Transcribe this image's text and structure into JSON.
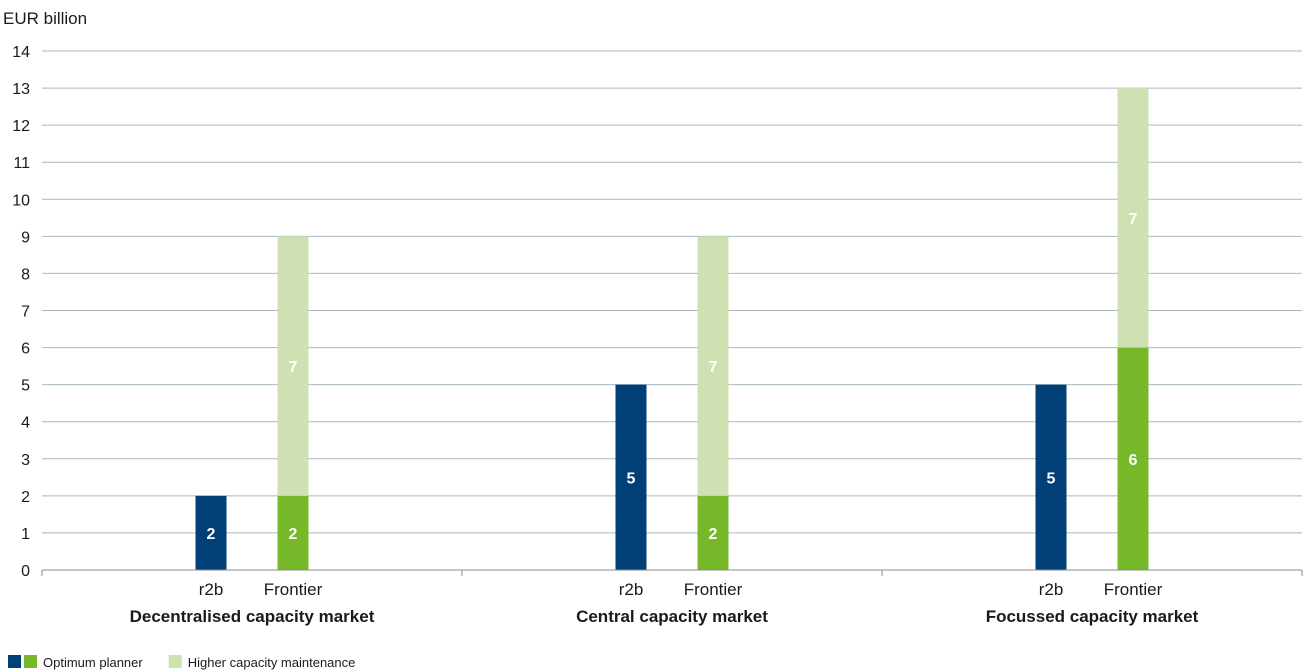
{
  "chart_data": {
    "type": "bar",
    "stacked": true,
    "ylabel": "EUR billion",
    "ylim": [
      0,
      14
    ],
    "yticks": [
      0,
      1,
      2,
      3,
      4,
      5,
      6,
      7,
      8,
      9,
      10,
      11,
      12,
      13,
      14
    ],
    "grid": true,
    "legend_position": "bottom-left",
    "groups": [
      {
        "name": "Decentralised capacity market",
        "bars": [
          {
            "label": "r2b",
            "segments": [
              {
                "series": "r2b",
                "value": 2
              }
            ]
          },
          {
            "label": "Frontier",
            "segments": [
              {
                "series": "Optimum planner",
                "value": 2
              },
              {
                "series": "Higher capacity maintenance",
                "value": 7
              }
            ]
          }
        ]
      },
      {
        "name": "Central capacity market",
        "bars": [
          {
            "label": "r2b",
            "segments": [
              {
                "series": "r2b",
                "value": 5
              }
            ]
          },
          {
            "label": "Frontier",
            "segments": [
              {
                "series": "Optimum planner",
                "value": 2
              },
              {
                "series": "Higher capacity maintenance",
                "value": 7
              }
            ]
          }
        ]
      },
      {
        "name": "Focussed capacity market",
        "bars": [
          {
            "label": "r2b",
            "segments": [
              {
                "series": "r2b",
                "value": 5
              }
            ]
          },
          {
            "label": "Frontier",
            "segments": [
              {
                "series": "Optimum planner",
                "value": 6
              },
              {
                "series": "Higher capacity maintenance",
                "value": 7
              }
            ]
          }
        ]
      }
    ],
    "legend": [
      {
        "label": "Optimum planner",
        "colors": [
          "#004077",
          "#76b82a"
        ]
      },
      {
        "label": "Higher capacity maintenance",
        "colors": [
          "#cfe0b3"
        ]
      }
    ],
    "colors": {
      "r2b": "#004077",
      "Optimum planner": "#76b82a",
      "Higher capacity maintenance": "#cfe0b3",
      "grid": "#a9b9c4",
      "axis": "#8c8c8c"
    }
  }
}
